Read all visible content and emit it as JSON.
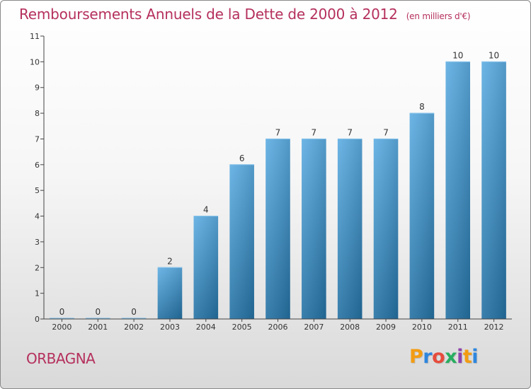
{
  "title": "Remboursements Annuels de la Dette de 2000 à 2012",
  "unit_label": "(en milliers d'€)",
  "commune": "ORBAGNA",
  "logo_text": "Proxiti",
  "logo_colors": [
    "#f39c12",
    "#2e86de",
    "#e74c3c",
    "#27ae60",
    "#8e44ad",
    "#f39c12",
    "#2e86de"
  ],
  "colors": {
    "title": "#b5305c",
    "bar_top": "#5dade2",
    "bar_bottom": "#2471a3",
    "axis": "#444444"
  },
  "chart_data": {
    "type": "bar",
    "categories": [
      "2000",
      "2001",
      "2002",
      "2003",
      "2004",
      "2005",
      "2006",
      "2007",
      "2008",
      "2009",
      "2010",
      "2011",
      "2012"
    ],
    "values": [
      0,
      0,
      0,
      2,
      4,
      6,
      7,
      7,
      7,
      7,
      8,
      10,
      10
    ],
    "yticks": [
      0,
      1,
      2,
      3,
      4,
      5,
      6,
      7,
      8,
      9,
      10,
      11
    ],
    "ylim": [
      0,
      11
    ],
    "grid": false,
    "legend": "none",
    "data_labels": true
  }
}
